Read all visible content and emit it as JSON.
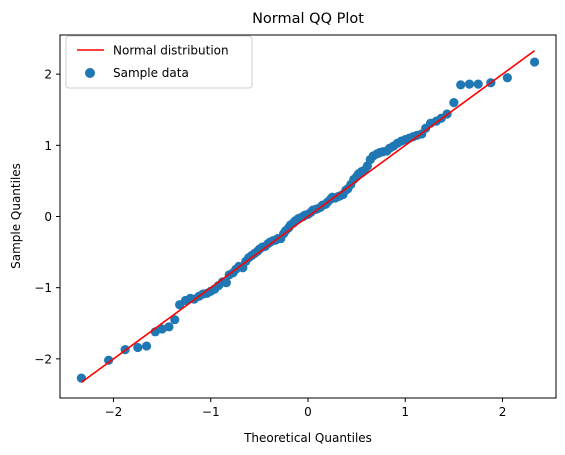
{
  "chart_data": {
    "type": "scatter",
    "title": "Normal QQ Plot",
    "xlabel": "Theoretical Quantiles",
    "ylabel": "Sample Quantiles",
    "xlim": [
      -2.55,
      2.55
    ],
    "ylim": [
      -2.55,
      2.55
    ],
    "xticks": [
      -2,
      -1,
      0,
      1,
      2
    ],
    "yticks": [
      -2,
      -1,
      0,
      1,
      2
    ],
    "tick_labels": [
      "−2",
      "−1",
      "0",
      "1",
      "2"
    ],
    "grid": false,
    "legend_position": "upper-left",
    "colors": {
      "sample": "#1f77b4",
      "line": "#ff0000"
    },
    "series": [
      {
        "name": "Normal distribution",
        "kind": "line",
        "x": [
          -2.33,
          2.33
        ],
        "y": [
          -2.33,
          2.33
        ]
      },
      {
        "name": "Sample data",
        "kind": "scatter",
        "x": [
          -2.33,
          -2.05,
          -1.88,
          -1.75,
          -1.66,
          -1.57,
          -1.5,
          -1.43,
          -1.37,
          -1.32,
          -1.26,
          -1.21,
          -1.17,
          -1.12,
          -1.08,
          -1.04,
          -1.0,
          -0.96,
          -0.92,
          -0.88,
          -0.84,
          -0.81,
          -0.77,
          -0.74,
          -0.71,
          -0.67,
          -0.64,
          -0.61,
          -0.58,
          -0.55,
          -0.52,
          -0.5,
          -0.47,
          -0.44,
          -0.41,
          -0.39,
          -0.36,
          -0.33,
          -0.31,
          -0.28,
          -0.25,
          -0.23,
          -0.2,
          -0.18,
          -0.15,
          -0.13,
          -0.1,
          -0.08,
          -0.05,
          -0.03,
          0.0,
          0.03,
          0.05,
          0.08,
          0.1,
          0.13,
          0.15,
          0.18,
          0.2,
          0.23,
          0.25,
          0.28,
          0.31,
          0.33,
          0.36,
          0.39,
          0.41,
          0.44,
          0.47,
          0.5,
          0.52,
          0.55,
          0.58,
          0.61,
          0.64,
          0.67,
          0.71,
          0.74,
          0.77,
          0.81,
          0.84,
          0.88,
          0.92,
          0.96,
          1.0,
          1.04,
          1.08,
          1.12,
          1.17,
          1.21,
          1.26,
          1.32,
          1.37,
          1.43,
          1.5,
          1.57,
          1.66,
          1.75,
          1.88,
          2.05,
          2.33
        ],
        "y": [
          -2.27,
          -2.02,
          -1.87,
          -1.84,
          -1.82,
          -1.62,
          -1.58,
          -1.55,
          -1.45,
          -1.24,
          -1.18,
          -1.15,
          -1.16,
          -1.12,
          -1.09,
          -1.08,
          -1.05,
          -1.02,
          -0.97,
          -0.92,
          -0.93,
          -0.82,
          -0.79,
          -0.74,
          -0.7,
          -0.72,
          -0.63,
          -0.58,
          -0.55,
          -0.52,
          -0.49,
          -0.46,
          -0.43,
          -0.42,
          -0.38,
          -0.36,
          -0.34,
          -0.33,
          -0.31,
          -0.31,
          -0.24,
          -0.2,
          -0.16,
          -0.12,
          -0.09,
          -0.06,
          -0.03,
          -0.02,
          0.0,
          0.02,
          0.03,
          0.06,
          0.09,
          0.1,
          0.11,
          0.13,
          0.16,
          0.17,
          0.2,
          0.24,
          0.27,
          0.26,
          0.28,
          0.29,
          0.31,
          0.37,
          0.39,
          0.45,
          0.52,
          0.56,
          0.6,
          0.63,
          0.65,
          0.71,
          0.8,
          0.85,
          0.88,
          0.9,
          0.91,
          0.92,
          0.96,
          0.99,
          1.03,
          1.06,
          1.08,
          1.1,
          1.12,
          1.14,
          1.16,
          1.24,
          1.31,
          1.34,
          1.38,
          1.44,
          1.6,
          1.85,
          1.86,
          1.86,
          1.88,
          1.95,
          2.17
        ]
      }
    ]
  }
}
